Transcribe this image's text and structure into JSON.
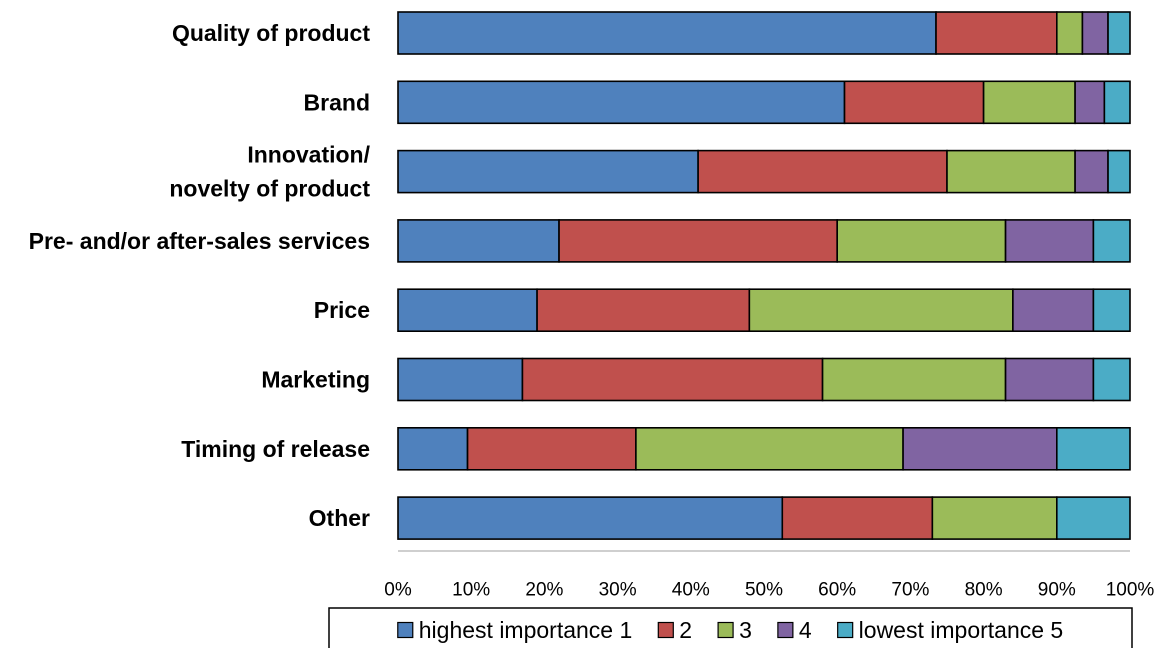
{
  "chart_data": {
    "type": "bar",
    "orientation": "horizontal",
    "stacked": true,
    "title": "",
    "xlabel": "",
    "ylabel": "",
    "xlim": [
      0,
      100
    ],
    "x_ticks": [
      "0%",
      "10%",
      "20%",
      "30%",
      "40%",
      "50%",
      "60%",
      "70%",
      "80%",
      "90%",
      "100%"
    ],
    "grid": false,
    "legend_position": "bottom",
    "categories": [
      "Quality of product",
      "Brand",
      "Innovation/\nnovelty of product",
      "Pre- and/or after-sales services",
      "Price",
      "Marketing",
      "Timing of release",
      "Other"
    ],
    "series": [
      {
        "name": "highest importance 1",
        "color": "#4f81bd",
        "values": [
          73.5,
          61,
          41,
          22,
          19,
          17,
          9.5,
          52.5
        ]
      },
      {
        "name": "2",
        "color": "#c0504d",
        "values": [
          16.5,
          19,
          34,
          38,
          29,
          41,
          23,
          20.5
        ]
      },
      {
        "name": "3",
        "color": "#9bbb59",
        "values": [
          3.5,
          12.5,
          17.5,
          23,
          36,
          25,
          36.5,
          17
        ]
      },
      {
        "name": "4",
        "color": "#8064a2",
        "values": [
          3.5,
          4,
          4.5,
          12,
          11,
          12,
          21,
          0
        ]
      },
      {
        "name": "lowest importance 5",
        "color": "#4bacc6",
        "values": [
          3,
          3.5,
          3,
          5,
          5,
          5,
          10,
          10
        ]
      }
    ]
  }
}
